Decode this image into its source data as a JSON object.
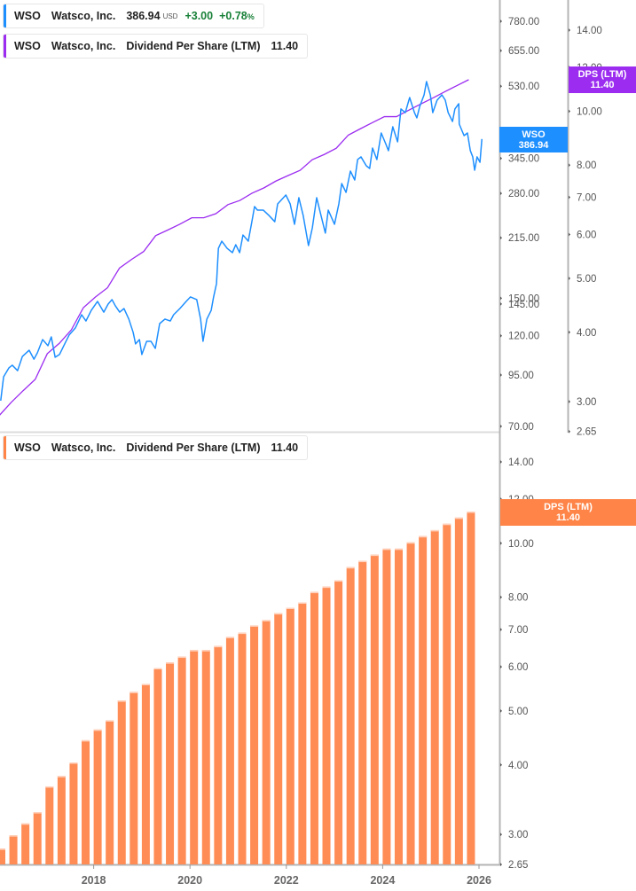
{
  "legends": {
    "price": {
      "ticker": "WSO",
      "company": "Watsco, Inc.",
      "price": "386.94",
      "currency": "USD",
      "change": "+3.00",
      "change_pct": "+0.78",
      "pct_sign": "%"
    },
    "dps_top": {
      "ticker": "WSO",
      "company": "Watsco, Inc.",
      "metric": "Dividend Per Share (LTM)",
      "value": "11.40"
    },
    "dps_bottom": {
      "ticker": "WSO",
      "company": "Watsco, Inc.",
      "metric": "Dividend Per Share (LTM)",
      "value": "11.40"
    }
  },
  "value_labels": {
    "price": {
      "name": "WSO",
      "value": "386.94"
    },
    "dps_top": {
      "name": "DPS (LTM)",
      "value": "11.40"
    },
    "dps_bottom": {
      "name": "DPS (LTM)",
      "value": "11.40"
    }
  },
  "colors": {
    "price_line": "#1e8fff",
    "dps_line": "#9b2cf0",
    "dps_bar": "#ff8c55",
    "dps_label": "#ff8447",
    "positive": "#188038"
  },
  "chart_data": [
    {
      "type": "line",
      "series": [
        {
          "name": "WSO",
          "axis": "price"
        }
      ],
      "scale": "log",
      "price_axis": {
        "ticks": [
          "780.00",
          "655.00",
          "530.00",
          "405.00",
          "345.00",
          "280.00",
          "215.00",
          "150.00",
          "145.00",
          "120.00",
          "95.00",
          "70.00"
        ],
        "ylim": [
          70,
          780
        ]
      },
      "x_unit": "year",
      "price": [
        [
          2016.07,
          81.5
        ],
        [
          2016.13,
          94.0
        ],
        [
          2016.24,
          99.1
        ],
        [
          2016.31,
          100.7
        ],
        [
          2016.42,
          97.5
        ],
        [
          2016.52,
          106.1
        ],
        [
          2016.66,
          110.1
        ],
        [
          2016.76,
          104.4
        ],
        [
          2016.83,
          108.3
        ],
        [
          2016.94,
          117.3
        ],
        [
          2017.05,
          113.1
        ],
        [
          2017.12,
          119.2
        ],
        [
          2017.2,
          105.6
        ],
        [
          2017.29,
          107.3
        ],
        [
          2017.38,
          113.1
        ],
        [
          2017.49,
          120.5
        ],
        [
          2017.62,
          125.7
        ],
        [
          2017.75,
          136.0
        ],
        [
          2017.84,
          131.0
        ],
        [
          2017.95,
          139.6
        ],
        [
          2018.08,
          147.2
        ],
        [
          2018.21,
          138.1
        ],
        [
          2018.3,
          144.9
        ],
        [
          2018.38,
          148.8
        ],
        [
          2018.45,
          143.4
        ],
        [
          2018.54,
          138.1
        ],
        [
          2018.63,
          141.1
        ],
        [
          2018.73,
          132.5
        ],
        [
          2018.82,
          122.4
        ],
        [
          2018.87,
          114.3
        ],
        [
          2018.95,
          117.3
        ],
        [
          2019.0,
          107.3
        ],
        [
          2019.1,
          116.1
        ],
        [
          2019.19,
          116.1
        ],
        [
          2019.28,
          111.3
        ],
        [
          2019.37,
          129.0
        ],
        [
          2019.48,
          132.5
        ],
        [
          2019.59,
          131.0
        ],
        [
          2019.66,
          136.0
        ],
        [
          2019.79,
          141.1
        ],
        [
          2019.92,
          147.2
        ],
        [
          2020.01,
          151.2
        ],
        [
          2020.14,
          148.8
        ],
        [
          2020.22,
          132.5
        ],
        [
          2020.27,
          116.1
        ],
        [
          2020.35,
          132.5
        ],
        [
          2020.44,
          139.6
        ],
        [
          2020.49,
          151.2
        ],
        [
          2020.55,
          163.6
        ],
        [
          2020.59,
          202.0
        ],
        [
          2020.66,
          210.7
        ],
        [
          2020.77,
          202.0
        ],
        [
          2020.88,
          196.8
        ],
        [
          2020.95,
          206.3
        ],
        [
          2021.03,
          196.8
        ],
        [
          2021.1,
          218.6
        ],
        [
          2021.21,
          210.7
        ],
        [
          2021.28,
          235.0
        ],
        [
          2021.34,
          258.9
        ],
        [
          2021.4,
          253.5
        ],
        [
          2021.52,
          253.5
        ],
        [
          2021.64,
          245.5
        ],
        [
          2021.76,
          236.6
        ],
        [
          2021.82,
          263.0
        ],
        [
          2021.99,
          277.3
        ],
        [
          2022.08,
          263.0
        ],
        [
          2022.17,
          233.0
        ],
        [
          2022.26,
          272.9
        ],
        [
          2022.35,
          245.5
        ],
        [
          2022.46,
          205.3
        ],
        [
          2022.54,
          228.1
        ],
        [
          2022.63,
          272.9
        ],
        [
          2022.72,
          245.5
        ],
        [
          2022.81,
          221.1
        ],
        [
          2022.87,
          253.5
        ],
        [
          2023.0,
          233.0
        ],
        [
          2023.09,
          263.0
        ],
        [
          2023.15,
          296.9
        ],
        [
          2023.24,
          281.7
        ],
        [
          2023.33,
          319.7
        ],
        [
          2023.42,
          303.3
        ],
        [
          2023.48,
          342.5
        ],
        [
          2023.55,
          348.0
        ],
        [
          2023.66,
          330.0
        ],
        [
          2023.73,
          324.8
        ],
        [
          2023.79,
          366.8
        ],
        [
          2023.88,
          342.5
        ],
        [
          2023.97,
          401.2
        ],
        [
          2024.07,
          374.6
        ],
        [
          2024.12,
          361.1
        ],
        [
          2024.21,
          416.3
        ],
        [
          2024.31,
          380.6
        ],
        [
          2024.38,
          462.8
        ],
        [
          2024.47,
          452.8
        ],
        [
          2024.56,
          495.4
        ],
        [
          2024.66,
          452.8
        ],
        [
          2024.71,
          438.9
        ],
        [
          2024.77,
          469.9
        ],
        [
          2024.86,
          503.3
        ],
        [
          2024.91,
          544.8
        ],
        [
          2024.99,
          503.3
        ],
        [
          2025.04,
          452.8
        ],
        [
          2025.13,
          487.7
        ],
        [
          2025.23,
          503.3
        ],
        [
          2025.3,
          487.7
        ],
        [
          2025.36,
          452.8
        ],
        [
          2025.45,
          429.6
        ],
        [
          2025.5,
          462.8
        ],
        [
          2025.58,
          477.5
        ],
        [
          2025.59,
          422.9
        ],
        [
          2025.69,
          394.9
        ],
        [
          2025.76,
          401.2
        ],
        [
          2025.82,
          361.1
        ],
        [
          2025.87,
          348.0
        ],
        [
          2025.91,
          321.4
        ],
        [
          2025.96,
          348.0
        ],
        [
          2026.02,
          337.0
        ],
        [
          2026.06,
          386.94
        ]
      ],
      "dps_axis": {
        "ticks": [
          "14.00",
          "12.00",
          "10.00",
          "8.00",
          "7.00",
          "6.00",
          "5.00",
          "4.00",
          "3.00",
          "2.65"
        ],
        "ylim": [
          2.65,
          14
        ]
      }
    },
    {
      "type": "bar",
      "series": [
        {
          "name": "DPS (LTM)"
        }
      ],
      "scale": "log",
      "ylim": [
        2.65,
        14
      ],
      "yticks": [
        "14.00",
        "12.00",
        "10.00",
        "8.00",
        "7.00",
        "6.00",
        "5.00",
        "4.00",
        "3.00",
        "2.65"
      ],
      "xticks": [
        "2018",
        "2020",
        "2022",
        "2024",
        "2026"
      ],
      "categories": [
        "2016 Q1",
        "2016 Q2",
        "2016 Q3",
        "2016 Q4",
        "2017 Q1",
        "2017 Q2",
        "2017 Q3",
        "2017 Q4",
        "2018 Q1",
        "2018 Q2",
        "2018 Q3",
        "2018 Q4",
        "2019 Q1",
        "2019 Q2",
        "2019 Q3",
        "2019 Q4",
        "2020 Q1",
        "2020 Q2",
        "2020 Q3",
        "2020 Q4",
        "2021 Q1",
        "2021 Q2",
        "2021 Q3",
        "2021 Q4",
        "2022 Q1",
        "2022 Q2",
        "2022 Q3",
        "2022 Q4",
        "2023 Q1",
        "2023 Q2",
        "2023 Q3",
        "2023 Q4",
        "2024 Q1",
        "2024 Q2",
        "2024 Q3",
        "2024 Q4",
        "2025 Q1",
        "2025 Q2",
        "2025 Q3",
        "2025 Q4"
      ],
      "values": [
        2.83,
        2.99,
        3.14,
        3.29,
        3.66,
        3.82,
        4.04,
        4.43,
        4.63,
        4.81,
        5.22,
        5.41,
        5.59,
        5.97,
        6.11,
        6.26,
        6.43,
        6.43,
        6.54,
        6.79,
        6.91,
        7.12,
        7.28,
        7.49,
        7.66,
        7.83,
        8.18,
        8.36,
        8.58,
        9.06,
        9.3,
        9.54,
        9.78,
        9.78,
        10.04,
        10.3,
        10.56,
        10.84,
        11.12,
        11.4
      ]
    }
  ]
}
